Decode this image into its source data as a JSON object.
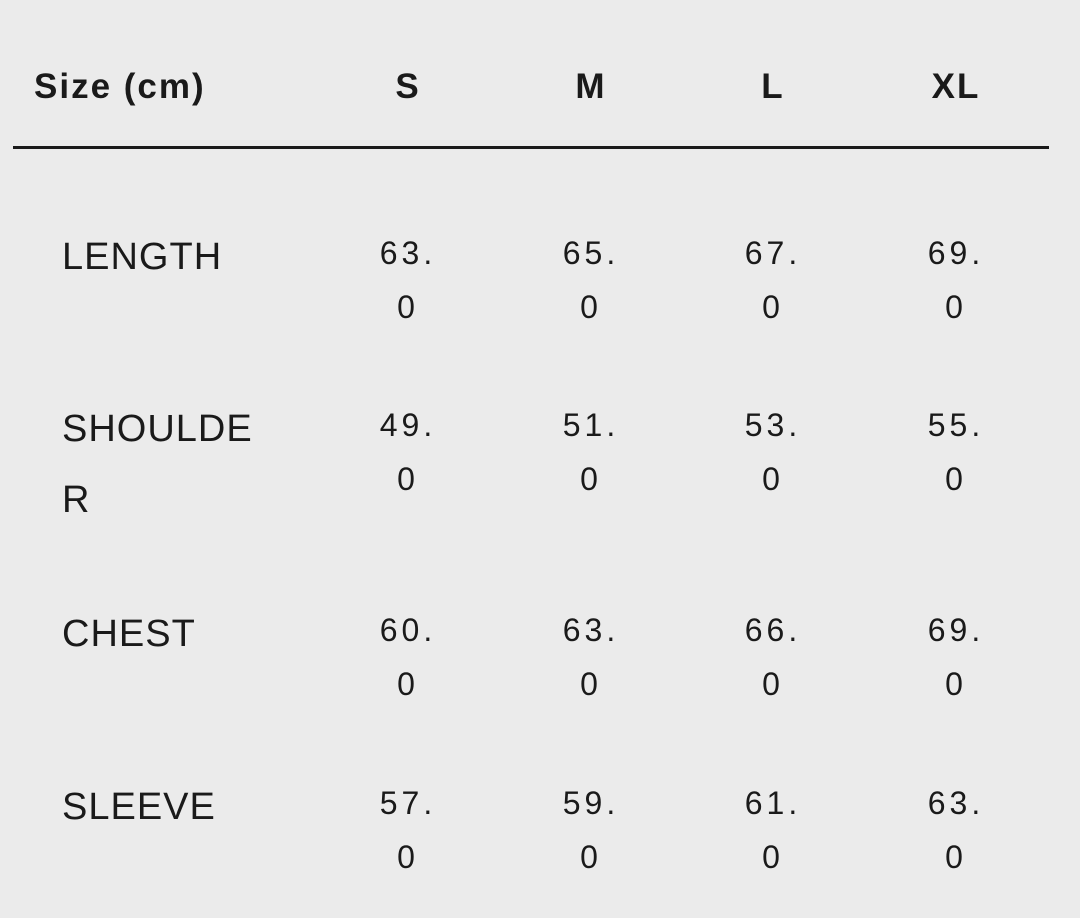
{
  "header": {
    "label": "Size (cm)",
    "sizes": [
      "S",
      "M",
      "L",
      "XL"
    ]
  },
  "rows": [
    {
      "label": "LENGTH",
      "values": [
        "63.0",
        "65.0",
        "67.0",
        "69.0"
      ]
    },
    {
      "label": "SHOULDER",
      "values": [
        "49.0",
        "51.0",
        "53.0",
        "55.0"
      ]
    },
    {
      "label": "CHEST",
      "values": [
        "60.0",
        "63.0",
        "66.0",
        "69.0"
      ]
    },
    {
      "label": "SLEEVE",
      "values": [
        "57.0",
        "59.0",
        "61.0",
        "63.0"
      ]
    }
  ]
}
